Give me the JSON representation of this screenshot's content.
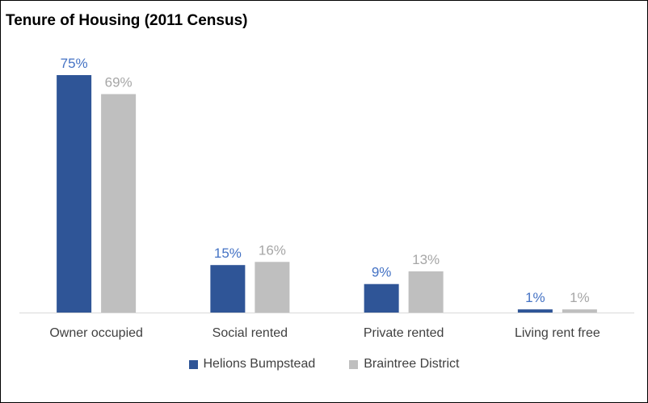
{
  "chart_data": {
    "type": "bar",
    "title": "Tenure of Housing (2011 Census)",
    "categories": [
      "Owner occupied",
      "Social rented",
      "Private rented",
      "Living rent free"
    ],
    "series": [
      {
        "name": "Helions Bumpstead",
        "values": [
          75,
          15,
          9,
          1
        ],
        "labels": [
          "75%",
          "15%",
          "9%",
          "1%"
        ],
        "color": "#2F5597"
      },
      {
        "name": "Braintree District",
        "values": [
          69,
          16,
          13,
          1
        ],
        "labels": [
          "69%",
          "16%",
          "13%",
          "1%"
        ],
        "color": "#BFBFBF"
      }
    ],
    "ylim": [
      0,
      75
    ],
    "grid": false,
    "legend_position": "bottom"
  },
  "colors": {
    "axis": "#D9D9D9",
    "category_text": "#404040",
    "label_series_1": "#4472C4",
    "label_series_2": "#A6A6A6"
  }
}
